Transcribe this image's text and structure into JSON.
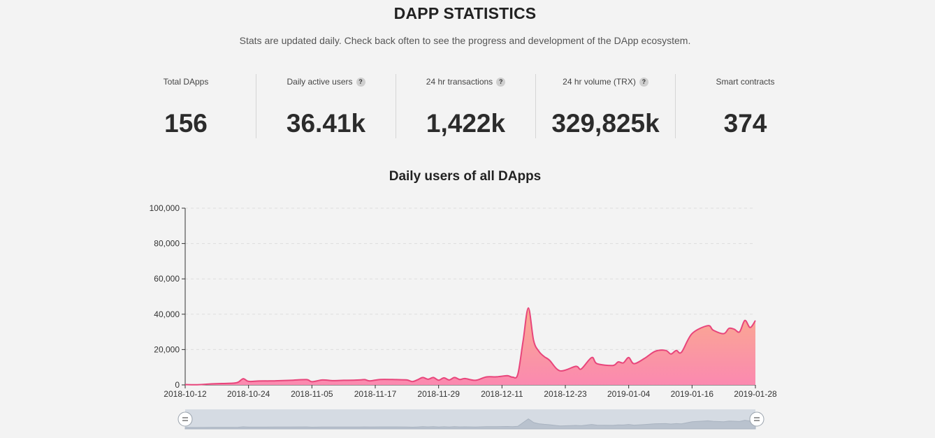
{
  "header": {
    "title": "DAPP STATISTICS",
    "subtitle": "Stats are updated daily. Check back often to see the progress and development of the DApp ecosystem."
  },
  "stats": [
    {
      "label": "Total DApps",
      "value": "156",
      "help": false
    },
    {
      "label": "Daily active users",
      "value": "36.41k",
      "help": true
    },
    {
      "label": "24 hr transactions",
      "value": "1,422k",
      "help": true
    },
    {
      "label": "24 hr volume (TRX)",
      "value": "329,825k",
      "help": true
    },
    {
      "label": "Smart contracts",
      "value": "374",
      "help": false
    }
  ],
  "help_glyph": "?",
  "colors": {
    "line": "#e8457b",
    "area_top": "#f9ab8f",
    "area_bottom": "#fb89b0",
    "grid": "#dddddd",
    "slider_bg": "#d5dbe3"
  },
  "chart_data": {
    "type": "area",
    "title": "Daily users of all DApps",
    "xlabel": "",
    "ylabel": "",
    "ylim": [
      0,
      100000
    ],
    "yticks": [
      0,
      20000,
      40000,
      60000,
      80000,
      100000
    ],
    "ytick_labels": [
      "0",
      "20,000",
      "40,000",
      "60,000",
      "80,000",
      "100,000"
    ],
    "xlim": [
      "2018-10-12",
      "2019-01-28"
    ],
    "xtick_labels": [
      "2018-10-12",
      "2018-10-24",
      "2018-11-05",
      "2018-11-17",
      "2018-11-29",
      "2018-12-11",
      "2018-12-23",
      "2019-01-04",
      "2019-01-16",
      "2019-01-28"
    ],
    "grid": true,
    "legend": "none",
    "data_zoom": "slider",
    "series": [
      {
        "values": [
          [
            "2018-10-12",
            200
          ],
          [
            "2018-10-14",
            100
          ],
          [
            "2018-10-16",
            400
          ],
          [
            "2018-10-17",
            600
          ],
          [
            "2018-10-19",
            800
          ],
          [
            "2018-10-21",
            1000
          ],
          [
            "2018-10-22",
            1500
          ],
          [
            "2018-10-23",
            3500
          ],
          [
            "2018-10-24",
            2000
          ],
          [
            "2018-10-26",
            2200
          ],
          [
            "2018-10-29",
            2300
          ],
          [
            "2018-11-01",
            2600
          ],
          [
            "2018-11-04",
            3000
          ],
          [
            "2018-11-05",
            1800
          ],
          [
            "2018-11-07",
            2800
          ],
          [
            "2018-11-09",
            2400
          ],
          [
            "2018-11-11",
            2600
          ],
          [
            "2018-11-14",
            2800
          ],
          [
            "2018-11-15",
            3000
          ],
          [
            "2018-11-16",
            2300
          ],
          [
            "2018-11-18",
            3100
          ],
          [
            "2018-11-21",
            3000
          ],
          [
            "2018-11-23",
            2800
          ],
          [
            "2018-11-24",
            1900
          ],
          [
            "2018-11-25",
            2900
          ],
          [
            "2018-11-26",
            4200
          ],
          [
            "2018-11-27",
            3200
          ],
          [
            "2018-11-28",
            4200
          ],
          [
            "2018-11-29",
            2700
          ],
          [
            "2018-11-30",
            4000
          ],
          [
            "2018-12-01",
            2800
          ],
          [
            "2018-12-02",
            4200
          ],
          [
            "2018-12-03",
            3100
          ],
          [
            "2018-12-04",
            3600
          ],
          [
            "2018-12-06",
            2600
          ],
          [
            "2018-12-08",
            4500
          ],
          [
            "2018-12-10",
            4600
          ],
          [
            "2018-12-12",
            5200
          ],
          [
            "2018-12-13",
            4400
          ],
          [
            "2018-12-14",
            6000
          ],
          [
            "2018-12-15",
            25000
          ],
          [
            "2018-12-16",
            43500
          ],
          [
            "2018-12-17",
            25000
          ],
          [
            "2018-12-18",
            19000
          ],
          [
            "2018-12-19",
            16000
          ],
          [
            "2018-12-20",
            14000
          ],
          [
            "2018-12-22",
            8000
          ],
          [
            "2018-12-25",
            10500
          ],
          [
            "2018-12-26",
            9000
          ],
          [
            "2018-12-28",
            15500
          ],
          [
            "2018-12-29",
            12000
          ],
          [
            "2019-01-01",
            11000
          ],
          [
            "2019-01-02",
            13000
          ],
          [
            "2019-01-03",
            12500
          ],
          [
            "2019-01-04",
            15500
          ],
          [
            "2019-01-05",
            12000
          ],
          [
            "2019-01-07",
            15000
          ],
          [
            "2019-01-09",
            19000
          ],
          [
            "2019-01-11",
            19500
          ],
          [
            "2019-01-12",
            17500
          ],
          [
            "2019-01-13",
            19500
          ],
          [
            "2019-01-14",
            18500
          ],
          [
            "2019-01-16",
            29000
          ],
          [
            "2019-01-19",
            33500
          ],
          [
            "2019-01-20",
            31000
          ],
          [
            "2019-01-22",
            29000
          ],
          [
            "2019-01-23",
            32000
          ],
          [
            "2019-01-24",
            31500
          ],
          [
            "2019-01-25",
            30000
          ],
          [
            "2019-01-26",
            36500
          ],
          [
            "2019-01-27",
            32500
          ],
          [
            "2019-01-28",
            36410
          ]
        ]
      }
    ]
  }
}
